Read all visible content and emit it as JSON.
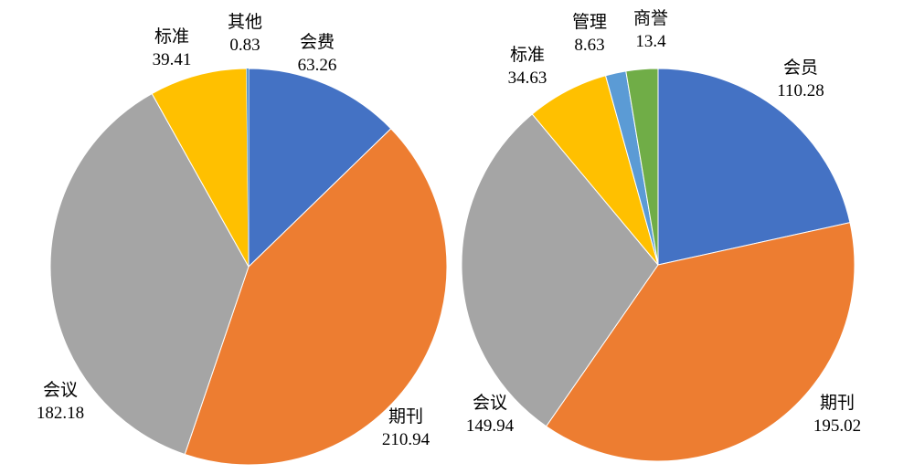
{
  "chart_data": [
    {
      "type": "pie",
      "title": "",
      "start_angle": 0,
      "direction": "clockwise",
      "legend": "none",
      "slices": [
        {
          "label": "会费",
          "value": 63.26,
          "color": "#4472C4"
        },
        {
          "label": "期刊",
          "value": 210.94,
          "color": "#ED7D31"
        },
        {
          "label": "会议",
          "value": 182.18,
          "color": "#A5A5A5"
        },
        {
          "label": "标准",
          "value": 39.41,
          "color": "#FFC000"
        },
        {
          "label": "其他",
          "value": 0.83,
          "color": "#5B9BD5"
        }
      ]
    },
    {
      "type": "pie",
      "title": "",
      "start_angle": 0,
      "direction": "clockwise",
      "legend": "none",
      "slices": [
        {
          "label": "会员",
          "value": 110.28,
          "color": "#4472C4"
        },
        {
          "label": "期刊",
          "value": 195.02,
          "color": "#ED7D31"
        },
        {
          "label": "会议",
          "value": 149.94,
          "color": "#A5A5A5"
        },
        {
          "label": "标准",
          "value": 34.63,
          "color": "#FFC000"
        },
        {
          "label": "管理",
          "value": 8.63,
          "color": "#5B9BD5"
        },
        {
          "label": "商誉",
          "value": 13.4,
          "color": "#70AD47"
        }
      ]
    }
  ]
}
